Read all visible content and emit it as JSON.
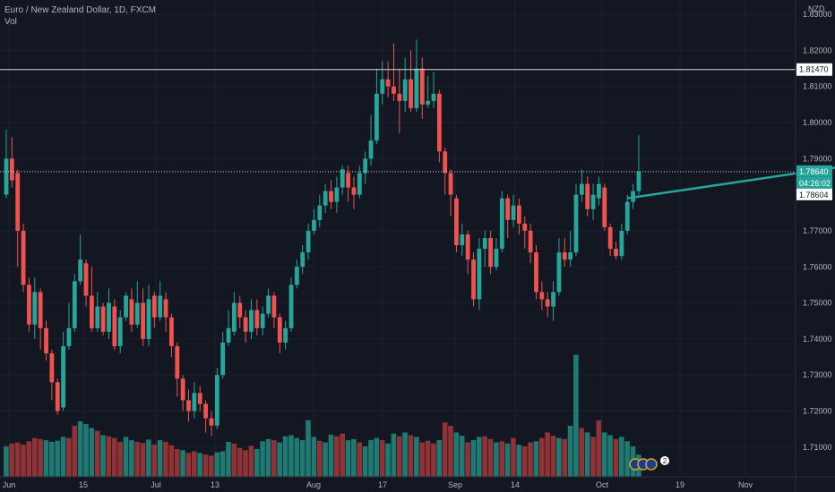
{
  "header": {
    "symbol_line": "Euro / New Zealand Dollar, 1D, FXCM",
    "volume_label": "Vol"
  },
  "currency_label": "NZD",
  "colors": {
    "background": "#131722",
    "up": "#26a69a",
    "down": "#ef5350",
    "vol_up": "#1e7a72",
    "vol_down": "#8f3337",
    "trendline": "#26a69a",
    "price_tag": "#26a69a"
  },
  "events_badge": {
    "icons": [
      "flag-icon",
      "flag-icon",
      "flag-icon"
    ],
    "count": "2"
  },
  "chart_data": {
    "type": "candlestick",
    "title": "Euro / New Zealand Dollar, 1D, FXCM",
    "ylim": [
      1.705,
      1.832
    ],
    "y_ticks": [
      "1.83000",
      "1.82000",
      "1.81000",
      "1.80000",
      "1.79000",
      "1.77000",
      "1.76000",
      "1.75000",
      "1.74000",
      "1.73000",
      "1.72000",
      "1.71000"
    ],
    "x_ticks": [
      "Jun",
      "15",
      "Jul",
      "13",
      "Aug",
      "17",
      "Sep",
      "14",
      "Oct",
      "19",
      "Nov"
    ],
    "horizontal_lines": [
      {
        "value": 1.8147,
        "label": "1.81470",
        "style": "solid"
      },
      {
        "value": 1.7864,
        "label": "1.78640",
        "style": "dotted"
      }
    ],
    "price_tags": [
      {
        "value": 1.7864,
        "label": "1.78640",
        "kind": "last-price"
      },
      {
        "value": 1.7835,
        "label": "04:26:02",
        "kind": "countdown"
      },
      {
        "value": 1.78604,
        "label": "1.78604",
        "kind": "open"
      }
    ],
    "trendline": {
      "from": [
        1.779,
        109
      ],
      "to": [
        1.7925,
        167
      ]
    },
    "candles": [
      [
        1.78,
        1.79,
        1.798,
        1.779
      ],
      [
        1.79,
        1.784,
        1.796,
        1.782
      ],
      [
        1.786,
        1.77,
        1.787,
        1.76
      ],
      [
        1.77,
        1.755,
        1.772,
        1.753
      ],
      [
        1.755,
        1.744,
        1.757,
        1.742
      ],
      [
        1.744,
        1.753,
        1.757,
        1.74
      ],
      [
        1.753,
        1.743,
        1.754,
        1.737
      ],
      [
        1.743,
        1.736,
        1.745,
        1.734
      ],
      [
        1.736,
        1.728,
        1.737,
        1.723
      ],
      [
        1.728,
        1.72,
        1.729,
        1.719
      ],
      [
        1.721,
        1.738,
        1.742,
        1.72
      ],
      [
        1.738,
        1.743,
        1.75,
        1.737
      ],
      [
        1.743,
        1.756,
        1.758,
        1.742
      ],
      [
        1.756,
        1.762,
        1.769,
        1.755
      ],
      [
        1.761,
        1.752,
        1.762,
        1.749
      ],
      [
        1.752,
        1.743,
        1.76,
        1.742
      ],
      [
        1.743,
        1.749,
        1.753,
        1.742
      ],
      [
        1.749,
        1.742,
        1.75,
        1.741
      ],
      [
        1.742,
        1.75,
        1.754,
        1.74
      ],
      [
        1.749,
        1.738,
        1.751,
        1.737
      ],
      [
        1.738,
        1.746,
        1.748,
        1.736
      ],
      [
        1.746,
        1.752,
        1.753,
        1.745
      ],
      [
        1.751,
        1.744,
        1.754,
        1.742
      ],
      [
        1.744,
        1.75,
        1.756,
        1.743
      ],
      [
        1.75,
        1.74,
        1.754,
        1.738
      ],
      [
        1.74,
        1.751,
        1.755,
        1.738
      ],
      [
        1.752,
        1.746,
        1.753,
        1.743
      ],
      [
        1.746,
        1.752,
        1.756,
        1.745
      ],
      [
        1.751,
        1.746,
        1.753,
        1.742
      ],
      [
        1.746,
        1.738,
        1.747,
        1.735
      ],
      [
        1.738,
        1.729,
        1.739,
        1.724
      ],
      [
        1.729,
        1.723,
        1.73,
        1.72
      ],
      [
        1.723,
        1.72,
        1.726,
        1.717
      ],
      [
        1.72,
        1.725,
        1.728,
        1.718
      ],
      [
        1.725,
        1.722,
        1.727,
        1.72
      ],
      [
        1.722,
        1.718,
        1.723,
        1.714
      ],
      [
        1.718,
        1.716,
        1.72,
        1.713
      ],
      [
        1.716,
        1.73,
        1.732,
        1.715
      ],
      [
        1.73,
        1.739,
        1.742,
        1.729
      ],
      [
        1.739,
        1.743,
        1.748,
        1.738
      ],
      [
        1.742,
        1.75,
        1.753,
        1.741
      ],
      [
        1.75,
        1.746,
        1.752,
        1.743
      ],
      [
        1.746,
        1.742,
        1.748,
        1.739
      ],
      [
        1.742,
        1.748,
        1.751,
        1.74
      ],
      [
        1.748,
        1.743,
        1.751,
        1.741
      ],
      [
        1.743,
        1.747,
        1.749,
        1.741
      ],
      [
        1.747,
        1.752,
        1.754,
        1.746
      ],
      [
        1.752,
        1.746,
        1.753,
        1.743
      ],
      [
        1.746,
        1.739,
        1.747,
        1.736
      ],
      [
        1.739,
        1.743,
        1.745,
        1.737
      ],
      [
        1.743,
        1.755,
        1.757,
        1.742
      ],
      [
        1.755,
        1.76,
        1.762,
        1.754
      ],
      [
        1.76,
        1.764,
        1.766,
        1.758
      ],
      [
        1.764,
        1.77,
        1.772,
        1.762
      ],
      [
        1.77,
        1.773,
        1.776,
        1.769
      ],
      [
        1.773,
        1.777,
        1.78,
        1.771
      ],
      [
        1.777,
        1.781,
        1.783,
        1.775
      ],
      [
        1.781,
        1.778,
        1.784,
        1.776
      ],
      [
        1.778,
        1.782,
        1.785,
        1.775
      ],
      [
        1.782,
        1.787,
        1.788,
        1.78
      ],
      [
        1.786,
        1.782,
        1.788,
        1.778
      ],
      [
        1.782,
        1.78,
        1.785,
        1.776
      ],
      [
        1.78,
        1.786,
        1.788,
        1.779
      ],
      [
        1.786,
        1.79,
        1.792,
        1.783
      ],
      [
        1.79,
        1.795,
        1.802,
        1.788
      ],
      [
        1.795,
        1.808,
        1.815,
        1.794
      ],
      [
        1.808,
        1.812,
        1.817,
        1.805
      ],
      [
        1.812,
        1.81,
        1.817,
        1.807
      ],
      [
        1.81,
        1.808,
        1.822,
        1.806
      ],
      [
        1.808,
        1.806,
        1.815,
        1.797
      ],
      [
        1.806,
        1.812,
        1.818,
        1.803
      ],
      [
        1.812,
        1.804,
        1.82,
        1.803
      ],
      [
        1.804,
        1.815,
        1.823,
        1.803
      ],
      [
        1.815,
        1.805,
        1.818,
        1.801
      ],
      [
        1.805,
        1.806,
        1.813,
        1.804
      ],
      [
        1.806,
        1.808,
        1.814,
        1.804
      ],
      [
        1.808,
        1.792,
        1.809,
        1.789
      ],
      [
        1.792,
        1.786,
        1.793,
        1.78
      ],
      [
        1.786,
        1.78,
        1.787,
        1.774
      ],
      [
        1.779,
        1.766,
        1.78,
        1.764
      ],
      [
        1.766,
        1.769,
        1.772,
        1.763
      ],
      [
        1.769,
        1.762,
        1.77,
        1.758
      ],
      [
        1.762,
        1.751,
        1.764,
        1.749
      ],
      [
        1.751,
        1.765,
        1.768,
        1.748
      ],
      [
        1.765,
        1.768,
        1.77,
        1.76
      ],
      [
        1.768,
        1.76,
        1.77,
        1.758
      ],
      [
        1.76,
        1.765,
        1.768,
        1.759
      ],
      [
        1.765,
        1.779,
        1.781,
        1.764
      ],
      [
        1.779,
        1.773,
        1.78,
        1.768
      ],
      [
        1.773,
        1.777,
        1.78,
        1.771
      ],
      [
        1.777,
        1.772,
        1.779,
        1.769
      ],
      [
        1.772,
        1.77,
        1.774,
        1.765
      ],
      [
        1.77,
        1.764,
        1.772,
        1.761
      ],
      [
        1.764,
        1.753,
        1.766,
        1.751
      ],
      [
        1.753,
        1.751,
        1.756,
        1.748
      ],
      [
        1.751,
        1.749,
        1.753,
        1.746
      ],
      [
        1.749,
        1.753,
        1.756,
        1.745
      ],
      [
        1.753,
        1.764,
        1.768,
        1.752
      ],
      [
        1.764,
        1.762,
        1.768,
        1.76
      ],
      [
        1.762,
        1.764,
        1.77,
        1.76
      ],
      [
        1.764,
        1.78,
        1.783,
        1.763
      ],
      [
        1.78,
        1.783,
        1.787,
        1.778
      ],
      [
        1.783,
        1.776,
        1.785,
        1.774
      ],
      [
        1.776,
        1.78,
        1.783,
        1.773
      ],
      [
        1.779,
        1.783,
        1.785,
        1.777
      ],
      [
        1.782,
        1.771,
        1.783,
        1.77
      ],
      [
        1.771,
        1.765,
        1.772,
        1.763
      ],
      [
        1.765,
        1.763,
        1.767,
        1.762
      ],
      [
        1.763,
        1.77,
        1.772,
        1.762
      ],
      [
        1.77,
        1.778,
        1.78,
        1.769
      ],
      [
        1.778,
        1.781,
        1.783,
        1.776
      ],
      [
        1.781,
        1.7864,
        1.7965,
        1.78
      ]
    ],
    "volumes": [
      [
        0.55,
        "up"
      ],
      [
        0.6,
        "down"
      ],
      [
        0.62,
        "down"
      ],
      [
        0.58,
        "down"
      ],
      [
        0.64,
        "down"
      ],
      [
        0.7,
        "down"
      ],
      [
        0.68,
        "down"
      ],
      [
        0.66,
        "up"
      ],
      [
        0.63,
        "up"
      ],
      [
        0.65,
        "up"
      ],
      [
        0.72,
        "up"
      ],
      [
        0.7,
        "down"
      ],
      [
        0.92,
        "down"
      ],
      [
        1.0,
        "up"
      ],
      [
        0.95,
        "up"
      ],
      [
        0.88,
        "up"
      ],
      [
        0.83,
        "down"
      ],
      [
        0.75,
        "up"
      ],
      [
        0.73,
        "down"
      ],
      [
        0.7,
        "down"
      ],
      [
        0.63,
        "down"
      ],
      [
        0.72,
        "up"
      ],
      [
        0.66,
        "up"
      ],
      [
        0.63,
        "down"
      ],
      [
        0.61,
        "down"
      ],
      [
        0.67,
        "up"
      ],
      [
        0.58,
        "down"
      ],
      [
        0.66,
        "up"
      ],
      [
        0.63,
        "down"
      ],
      [
        0.57,
        "down"
      ],
      [
        0.5,
        "down"
      ],
      [
        0.48,
        "up"
      ],
      [
        0.43,
        "down"
      ],
      [
        0.46,
        "down"
      ],
      [
        0.43,
        "up"
      ],
      [
        0.4,
        "down"
      ],
      [
        0.38,
        "down"
      ],
      [
        0.44,
        "up"
      ],
      [
        0.46,
        "up"
      ],
      [
        0.63,
        "up"
      ],
      [
        0.6,
        "down"
      ],
      [
        0.52,
        "down"
      ],
      [
        0.48,
        "down"
      ],
      [
        0.56,
        "down"
      ],
      [
        0.5,
        "up"
      ],
      [
        0.64,
        "up"
      ],
      [
        0.68,
        "up"
      ],
      [
        0.66,
        "down"
      ],
      [
        0.62,
        "up"
      ],
      [
        0.73,
        "up"
      ],
      [
        0.75,
        "up"
      ],
      [
        0.7,
        "up"
      ],
      [
        0.66,
        "up"
      ],
      [
        1.02,
        "up"
      ],
      [
        0.72,
        "up"
      ],
      [
        0.65,
        "down"
      ],
      [
        0.62,
        "up"
      ],
      [
        0.76,
        "up"
      ],
      [
        0.73,
        "down"
      ],
      [
        0.78,
        "down"
      ],
      [
        0.66,
        "up"
      ],
      [
        0.68,
        "up"
      ],
      [
        0.62,
        "down"
      ],
      [
        0.55,
        "up"
      ],
      [
        0.66,
        "up"
      ],
      [
        0.7,
        "up"
      ],
      [
        0.66,
        "down"
      ],
      [
        0.6,
        "up"
      ],
      [
        0.78,
        "up"
      ],
      [
        0.73,
        "down"
      ],
      [
        0.8,
        "up"
      ],
      [
        0.75,
        "down"
      ],
      [
        0.72,
        "up"
      ],
      [
        0.62,
        "down"
      ],
      [
        0.65,
        "down"
      ],
      [
        0.6,
        "down"
      ],
      [
        0.66,
        "up"
      ],
      [
        0.98,
        "down"
      ],
      [
        0.92,
        "down"
      ],
      [
        0.8,
        "up"
      ],
      [
        0.74,
        "up"
      ],
      [
        0.62,
        "down"
      ],
      [
        0.66,
        "up"
      ],
      [
        0.72,
        "up"
      ],
      [
        0.73,
        "down"
      ],
      [
        0.68,
        "down"
      ],
      [
        0.62,
        "up"
      ],
      [
        0.64,
        "down"
      ],
      [
        0.6,
        "up"
      ],
      [
        0.7,
        "down"
      ],
      [
        0.58,
        "up"
      ],
      [
        0.55,
        "down"
      ],
      [
        0.62,
        "down"
      ],
      [
        0.64,
        "up"
      ],
      [
        0.7,
        "down"
      ],
      [
        0.8,
        "down"
      ],
      [
        0.74,
        "down"
      ],
      [
        0.7,
        "up"
      ],
      [
        0.68,
        "down"
      ],
      [
        0.92,
        "up"
      ],
      [
        2.2,
        "up"
      ],
      [
        0.88,
        "down"
      ],
      [
        0.8,
        "up"
      ],
      [
        0.72,
        "down"
      ],
      [
        1.02,
        "down"
      ],
      [
        0.8,
        "up"
      ],
      [
        0.75,
        "up"
      ],
      [
        0.68,
        "down"
      ],
      [
        0.72,
        "up"
      ],
      [
        0.64,
        "up"
      ],
      [
        0.55,
        "up"
      ],
      [
        0.4,
        "up"
      ]
    ]
  }
}
